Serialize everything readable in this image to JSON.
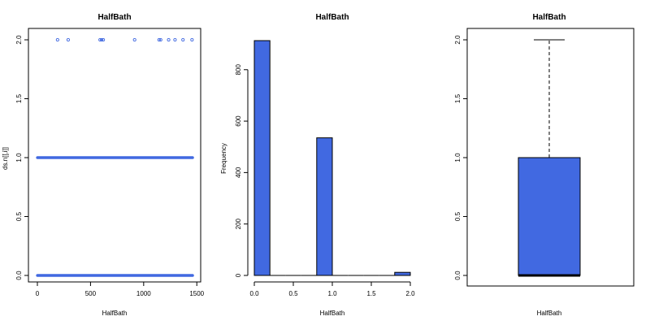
{
  "chart_data": [
    {
      "type": "scatter",
      "title": "HalfBath",
      "xlabel": "HalfBath",
      "ylabel": "ds.n[[,i]]",
      "xlim": [
        0,
        1460
      ],
      "ylim": [
        0,
        2
      ],
      "xticks": [
        "0",
        "500",
        "1000",
        "1500"
      ],
      "xtick_values": [
        0,
        500,
        1000,
        1500
      ],
      "yticks": [
        "0.0",
        "0.5",
        "1.0",
        "1.5",
        "2.0"
      ],
      "ytick_values": [
        0,
        0.5,
        1,
        1.5,
        2
      ],
      "point_color": "#4169E1",
      "dense_bands": [
        {
          "y": 0,
          "x_from": 1,
          "x_to": 1460
        },
        {
          "y": 1,
          "x_from": 1,
          "x_to": 1460
        }
      ],
      "points": [
        {
          "x": 190,
          "y": 2
        },
        {
          "x": 290,
          "y": 2
        },
        {
          "x": 590,
          "y": 2
        },
        {
          "x": 605,
          "y": 2
        },
        {
          "x": 620,
          "y": 2
        },
        {
          "x": 915,
          "y": 2
        },
        {
          "x": 1145,
          "y": 2
        },
        {
          "x": 1160,
          "y": 2
        },
        {
          "x": 1235,
          "y": 2
        },
        {
          "x": 1295,
          "y": 2
        },
        {
          "x": 1370,
          "y": 2
        },
        {
          "x": 1455,
          "y": 2
        }
      ]
    },
    {
      "type": "bar",
      "title": "HalfBath",
      "xlabel": "HalfBath",
      "ylabel": "Frequency",
      "xlim": [
        0,
        2
      ],
      "ylim": [
        0,
        913
      ],
      "xticks": [
        "0.0",
        "0.5",
        "1.0",
        "1.5",
        "2.0"
      ],
      "xtick_values": [
        0,
        0.5,
        1,
        1.5,
        2
      ],
      "yticks": [
        "0",
        "200",
        "400",
        "600",
        "800"
      ],
      "ytick_values": [
        0,
        200,
        400,
        600,
        800
      ],
      "bar_color": "#4169E1",
      "bins": [
        {
          "from": 0.0,
          "to": 0.2,
          "count": 913
        },
        {
          "from": 0.2,
          "to": 0.4,
          "count": 0
        },
        {
          "from": 0.4,
          "to": 0.6,
          "count": 0
        },
        {
          "from": 0.6,
          "to": 0.8,
          "count": 0
        },
        {
          "from": 0.8,
          "to": 1.0,
          "count": 535
        },
        {
          "from": 1.0,
          "to": 1.2,
          "count": 0
        },
        {
          "from": 1.2,
          "to": 1.4,
          "count": 0
        },
        {
          "from": 1.4,
          "to": 1.6,
          "count": 0
        },
        {
          "from": 1.6,
          "to": 1.8,
          "count": 0
        },
        {
          "from": 1.8,
          "to": 2.0,
          "count": 12
        }
      ]
    },
    {
      "type": "box",
      "title": "HalfBath",
      "xlabel": "HalfBath",
      "ylim": [
        0,
        2
      ],
      "yticks": [
        "0.0",
        "0.5",
        "1.0",
        "1.5",
        "2.0"
      ],
      "ytick_values": [
        0,
        0.5,
        1,
        1.5,
        2
      ],
      "box_color": "#4169E1",
      "min": 0,
      "q1": 0,
      "median": 0,
      "q3": 1,
      "max": 2
    }
  ]
}
